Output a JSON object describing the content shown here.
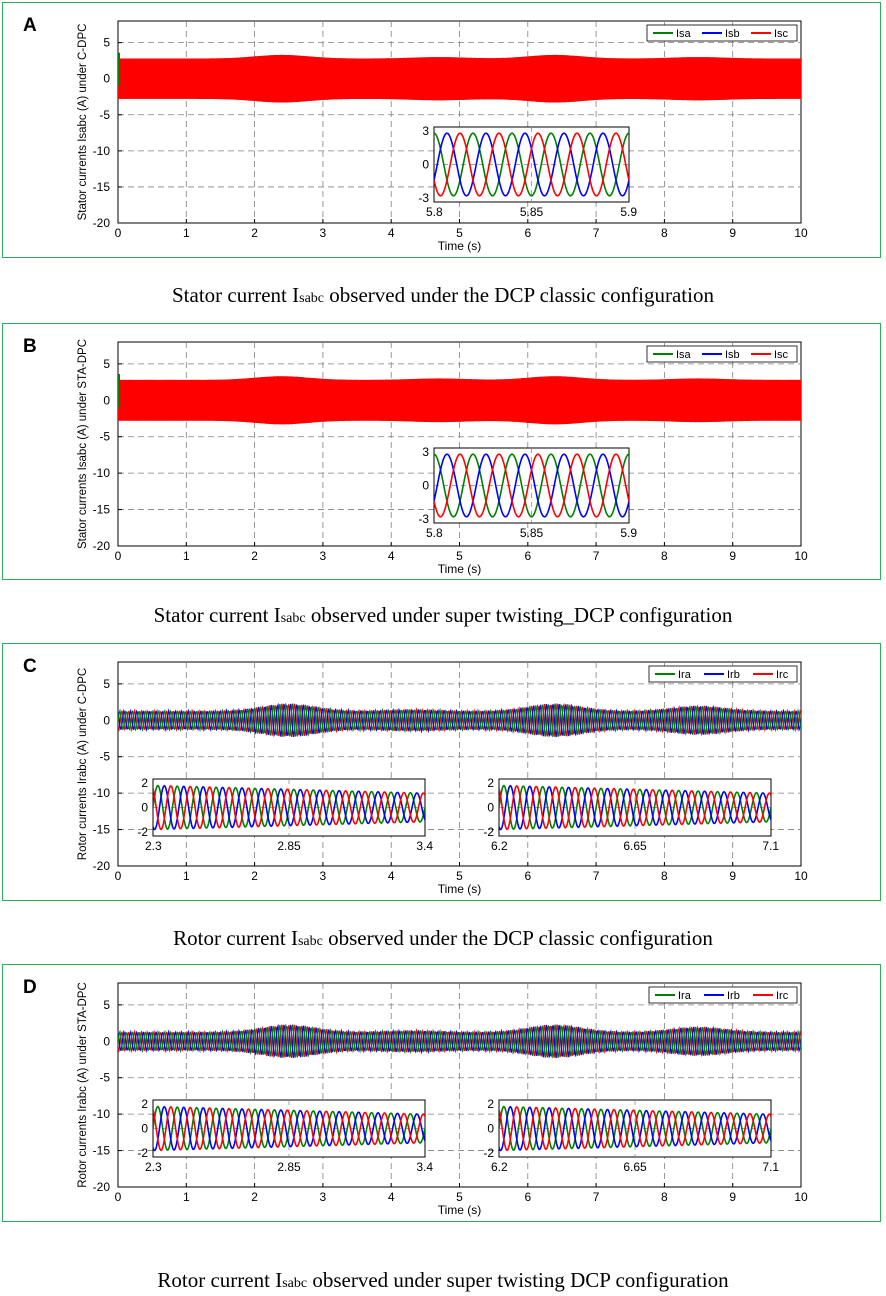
{
  "panels": [
    {
      "letter": "A",
      "caption": {
        "pre": "Stator current I",
        "sub": "sabc",
        "post": " observed under the DCP classic configuration"
      }
    },
    {
      "letter": "B",
      "caption": {
        "pre": "Stator current I",
        "sub": "sabc",
        "post": " observed under super twisting_DCP configuration"
      }
    },
    {
      "letter": "C",
      "caption": {
        "pre": "Rotor current I",
        "sub": "sabc",
        "post": " observed under the DCP classic configuration"
      }
    },
    {
      "letter": "D",
      "caption": {
        "pre": "Rotor current I",
        "sub": "sabc",
        "post": " observed under super twisting  DCP configuration"
      }
    }
  ],
  "colors": {
    "phase_a": "#008000",
    "phase_b": "#0000ff",
    "phase_c": "#ff0000",
    "frame": "#2eae5a",
    "grid": "#808080"
  },
  "chart_data": [
    {
      "type": "line",
      "ylabel": "Stator currents Isabc (A) under C-DPC",
      "xlabel": "Time (s)",
      "xlim": [
        0,
        10
      ],
      "ylim": [
        -20,
        8
      ],
      "xticks": [
        "0",
        "1",
        "2",
        "3",
        "4",
        "5",
        "6",
        "7",
        "8",
        "9",
        "10"
      ],
      "yticks": [
        "5",
        "0",
        "-5",
        "-10",
        "-15",
        "-20"
      ],
      "grid": true,
      "legend": [
        "Isa",
        "Isb",
        "Isc"
      ],
      "legend_position": "top-right",
      "series": [
        {
          "name": "Isa",
          "color": "#008000",
          "amplitude": 2.8
        },
        {
          "name": "Isb",
          "color": "#0000ff",
          "amplitude": 2.8
        },
        {
          "name": "Isc",
          "color": "#ff0000",
          "amplitude": 2.8
        }
      ],
      "envelope_peaks": [
        {
          "t": 2.4,
          "a": 3.3
        },
        {
          "t": 6.4,
          "a": 3.3
        },
        {
          "t": 4.7,
          "a": 3.0
        },
        {
          "t": 8.5,
          "a": 3.0
        }
      ],
      "inset": [
        {
          "xlim": [
            5.8,
            5.9
          ],
          "ylim": [
            -3,
            3
          ],
          "xticks": [
            "5.8",
            "5.85",
            "5.9"
          ],
          "yticks": [
            "3",
            "0",
            "-3"
          ],
          "cycles": 5
        }
      ]
    },
    {
      "type": "line",
      "ylabel": "Stator currents Isabc (A) under STA-DPC",
      "xlabel": "Time (s)",
      "xlim": [
        0,
        10
      ],
      "ylim": [
        -20,
        8
      ],
      "xticks": [
        "0",
        "1",
        "2",
        "3",
        "4",
        "5",
        "6",
        "7",
        "8",
        "9",
        "10"
      ],
      "yticks": [
        "5",
        "0",
        "-5",
        "-10",
        "-15",
        "-20"
      ],
      "grid": true,
      "legend": [
        "Isa",
        "Isb",
        "Isc"
      ],
      "legend_position": "top-right",
      "series": [
        {
          "name": "Isa",
          "color": "#008000",
          "amplitude": 2.8
        },
        {
          "name": "Isb",
          "color": "#0000ff",
          "amplitude": 2.8
        },
        {
          "name": "Isc",
          "color": "#ff0000",
          "amplitude": 2.8
        }
      ],
      "envelope_peaks": [
        {
          "t": 2.4,
          "a": 3.3
        },
        {
          "t": 6.4,
          "a": 3.3
        },
        {
          "t": 4.7,
          "a": 3.0
        },
        {
          "t": 8.5,
          "a": 3.0
        }
      ],
      "inset": [
        {
          "xlim": [
            5.8,
            5.9
          ],
          "ylim": [
            -3,
            3
          ],
          "xticks": [
            "5.8",
            "5.85",
            "5.9"
          ],
          "yticks": [
            "3",
            "0",
            "-3"
          ],
          "cycles": 5
        }
      ]
    },
    {
      "type": "line",
      "ylabel": "Rotor currents Irabc (A) under C-DPC",
      "xlabel": "Time (s)",
      "xlim": [
        0,
        10
      ],
      "ylim": [
        -20,
        8
      ],
      "xticks": [
        "0",
        "1",
        "2",
        "3",
        "4",
        "5",
        "6",
        "7",
        "8",
        "9",
        "10"
      ],
      "yticks": [
        "5",
        "0",
        "-5",
        "-10",
        "-15",
        "-20"
      ],
      "grid": true,
      "legend": [
        "Ira",
        "Irb",
        "Irc"
      ],
      "legend_position": "top-right",
      "series": [
        {
          "name": "Ira",
          "color": "#008000",
          "amplitude": 1.3
        },
        {
          "name": "Irb",
          "color": "#0000ff",
          "amplitude": 1.3
        },
        {
          "name": "Irc",
          "color": "#ff0000",
          "amplitude": 1.3
        }
      ],
      "envelope_peaks": [
        {
          "t": 0.6,
          "a": 1.3
        },
        {
          "t": 2.5,
          "a": 2.3
        },
        {
          "t": 4.3,
          "a": 1.5
        },
        {
          "t": 6.4,
          "a": 2.3
        },
        {
          "t": 8.5,
          "a": 2.0
        }
      ],
      "inset": [
        {
          "xlim": [
            2.3,
            3.4
          ],
          "ylim": [
            -2,
            2
          ],
          "xticks": [
            "2.3",
            "2.85",
            "3.4"
          ],
          "yticks": [
            "2",
            "0",
            "-2"
          ],
          "cycles": 14
        },
        {
          "xlim": [
            6.2,
            7.1
          ],
          "ylim": [
            -2,
            2
          ],
          "xticks": [
            "6.2",
            "6.65",
            "7.1"
          ],
          "yticks": [
            "2",
            "0",
            "-2"
          ],
          "cycles": 14
        }
      ]
    },
    {
      "type": "line",
      "ylabel": "Rotor currents Irabc (A) under STA-DPC",
      "xlabel": "Time (s)",
      "xlim": [
        0,
        10
      ],
      "ylim": [
        -20,
        8
      ],
      "xticks": [
        "0",
        "1",
        "2",
        "3",
        "4",
        "5",
        "6",
        "7",
        "8",
        "9",
        "10"
      ],
      "yticks": [
        "5",
        "0",
        "-5",
        "-10",
        "-15",
        "-20"
      ],
      "grid": true,
      "legend": [
        "Ira",
        "Irb",
        "Irc"
      ],
      "legend_position": "top-right",
      "series": [
        {
          "name": "Ira",
          "color": "#008000",
          "amplitude": 1.3
        },
        {
          "name": "Irb",
          "color": "#0000ff",
          "amplitude": 1.3
        },
        {
          "name": "Irc",
          "color": "#ff0000",
          "amplitude": 1.3
        }
      ],
      "envelope_peaks": [
        {
          "t": 0.6,
          "a": 1.3
        },
        {
          "t": 2.5,
          "a": 2.3
        },
        {
          "t": 4.3,
          "a": 1.5
        },
        {
          "t": 6.4,
          "a": 2.3
        },
        {
          "t": 8.5,
          "a": 2.0
        }
      ],
      "inset": [
        {
          "xlim": [
            2.3,
            3.4
          ],
          "ylim": [
            -2,
            2
          ],
          "xticks": [
            "2.3",
            "2.85",
            "3.4"
          ],
          "yticks": [
            "2",
            "0",
            "-2"
          ],
          "cycles": 14
        },
        {
          "xlim": [
            6.2,
            7.1
          ],
          "ylim": [
            -2,
            2
          ],
          "xticks": [
            "6.2",
            "6.65",
            "7.1"
          ],
          "yticks": [
            "2",
            "0",
            "-2"
          ],
          "cycles": 14
        }
      ]
    }
  ]
}
